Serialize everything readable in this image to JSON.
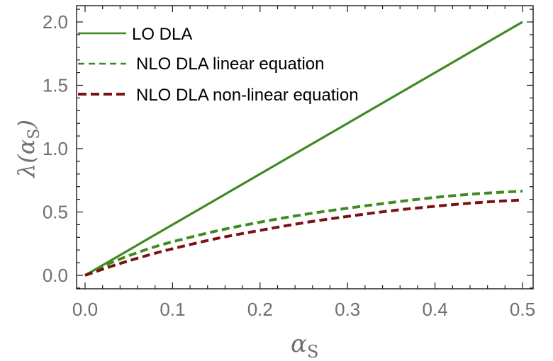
{
  "chart_data": {
    "type": "line",
    "title": "",
    "xlabel": "αS",
    "ylabel": "λ(αS)",
    "xlim": [
      0.0,
      0.5
    ],
    "ylim": [
      -0.1,
      2.1
    ],
    "xticks": [
      0.0,
      0.1,
      0.2,
      0.3,
      0.4,
      0.5
    ],
    "xtick_labels": [
      "0.0",
      "0.1",
      "0.2",
      "0.3",
      "0.4",
      "0.5"
    ],
    "yticks": [
      0.0,
      0.5,
      1.0,
      1.5,
      2.0
    ],
    "ytick_labels": [
      "0.0",
      "0.5",
      "1.0",
      "1.5",
      "2.0"
    ],
    "grid": false,
    "legend_position": "top-left",
    "series": [
      {
        "name": "LO DLA",
        "style": "solid",
        "color": "#3f8a22",
        "x": [
          0.0,
          0.05,
          0.1,
          0.15,
          0.2,
          0.25,
          0.3,
          0.35,
          0.4,
          0.45,
          0.5
        ],
        "y": [
          0.0,
          0.2,
          0.4,
          0.6,
          0.8,
          1.0,
          1.2,
          1.4,
          1.6,
          1.8,
          2.0
        ]
      },
      {
        "name": "NLO DLA linear equation",
        "style": "dashed",
        "color": "#3f8a22",
        "x": [
          0.0,
          0.025,
          0.05,
          0.075,
          0.1,
          0.15,
          0.2,
          0.25,
          0.3,
          0.35,
          0.4,
          0.45,
          0.5
        ],
        "y": [
          0.0,
          0.085,
          0.155,
          0.215,
          0.265,
          0.35,
          0.42,
          0.48,
          0.53,
          0.575,
          0.615,
          0.645,
          0.665
        ]
      },
      {
        "name": "NLO DLA non-linear equation",
        "style": "dashed",
        "color": "#7a1212",
        "x": [
          0.0,
          0.025,
          0.05,
          0.075,
          0.1,
          0.15,
          0.2,
          0.25,
          0.3,
          0.35,
          0.4,
          0.45,
          0.5
        ],
        "y": [
          0.0,
          0.06,
          0.115,
          0.165,
          0.21,
          0.29,
          0.355,
          0.415,
          0.465,
          0.51,
          0.545,
          0.575,
          0.595
        ]
      }
    ]
  },
  "axes": {
    "x_title_main": "α",
    "x_title_sub": "S",
    "y_title_prefix": "λ(",
    "y_title_alpha": "α",
    "y_title_sub": "S",
    "y_title_suffix": ")"
  },
  "colors": {
    "frame": "#1a1a1a",
    "tick_label": "#6f6f6f"
  }
}
